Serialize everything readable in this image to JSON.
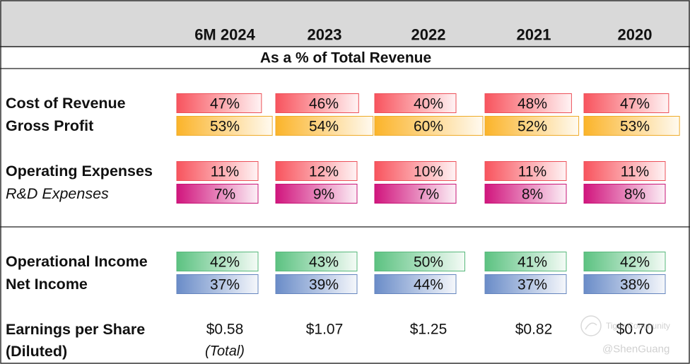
{
  "chart_data": {
    "type": "table",
    "subtitle": "As a % of Total Revenue",
    "columns": [
      "6M 2024",
      "2023",
      "2022",
      "2021",
      "2020"
    ],
    "rows": [
      {
        "label": "Cost of Revenue",
        "style": "bold",
        "color": "#f8545e",
        "values": [
          47,
          46,
          40,
          48,
          47
        ],
        "display": [
          "47%",
          "46%",
          "40%",
          "48%",
          "47%"
        ]
      },
      {
        "label": "Gross Profit",
        "style": "bold",
        "color": "#fbb42a",
        "values": [
          53,
          54,
          60,
          52,
          53
        ],
        "display": [
          "53%",
          "54%",
          "60%",
          "52%",
          "53%"
        ]
      },
      {
        "label": "Operating Expenses",
        "style": "bold",
        "color": "#f8545e",
        "values": [
          11,
          12,
          10,
          11,
          11
        ],
        "display": [
          "11%",
          "12%",
          "10%",
          "11%",
          "11%"
        ]
      },
      {
        "label": "R&D Expenses",
        "style": "italic",
        "color": "#d1157d",
        "values": [
          7,
          9,
          7,
          8,
          8
        ],
        "display": [
          "7%",
          "9%",
          "7%",
          "8%",
          "8%"
        ]
      },
      {
        "label": "Operational Income",
        "style": "bold",
        "color": "#5cc281",
        "values": [
          42,
          43,
          50,
          41,
          42
        ],
        "display": [
          "42%",
          "43%",
          "50%",
          "41%",
          "42%"
        ]
      },
      {
        "label": "Net Income",
        "style": "bold",
        "color": "#6a8cc8",
        "values": [
          37,
          39,
          44,
          37,
          38
        ],
        "display": [
          "37%",
          "39%",
          "44%",
          "37%",
          "38%"
        ]
      }
    ],
    "eps": {
      "label_line1": "Earnings per Share",
      "label_line2": "(Diluted)",
      "values": [
        "$0.58",
        "$1.07",
        "$1.25",
        "$0.82",
        "$0.70"
      ],
      "note": "(Total)"
    },
    "watermark": {
      "line1": "Tiger Community",
      "line2": "@ShenGuang"
    }
  }
}
